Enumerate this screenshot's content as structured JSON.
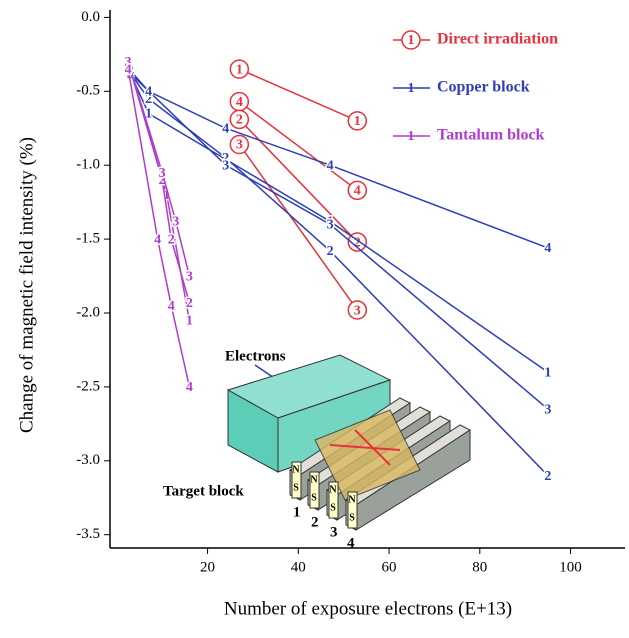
{
  "chart_data": {
    "type": "line",
    "y_label": "Change of magnetic field intensity (%)",
    "x_label": "Number of exposure electrons (E+13)",
    "xlim": [
      -1.5,
      112
    ],
    "ylim": [
      -3.59,
      0.05
    ],
    "xticks": [
      20,
      40,
      60,
      80,
      100
    ],
    "yticks": [
      {
        "value": 0,
        "label": "0.0"
      },
      -0.5,
      {
        "value": -1,
        "label": "-1.0"
      },
      -1.5,
      {
        "value": -2,
        "label": "-2.0"
      },
      -2.5,
      {
        "value": -3,
        "label": "-3.0"
      },
      -3.5
    ],
    "groups": [
      {
        "name": "Direct irradiation",
        "color": "#e8313a",
        "circled": true,
        "series": [
          {
            "marker": "1",
            "x": [
              27,
              53
            ],
            "values": [
              -0.35,
              -0.7
            ]
          },
          {
            "marker": "4",
            "x": [
              27,
              53
            ],
            "values": [
              -0.57,
              -1.17
            ]
          },
          {
            "marker": "2",
            "x": [
              27,
              53
            ],
            "values": [
              -0.69,
              -1.52
            ]
          },
          {
            "marker": "3",
            "x": [
              27,
              53
            ],
            "values": [
              -0.86,
              -1.98
            ]
          }
        ]
      },
      {
        "name": "Copper block",
        "color": "#2c3fb8",
        "circled": false,
        "series": [
          {
            "marker": "1",
            "x": [
              3,
              7,
              47,
              95
            ],
            "values": [
              -0.38,
              -0.65,
              -1.38,
              -2.4
            ]
          },
          {
            "marker": "2",
            "x": [
              3,
              7,
              24,
              47,
              95
            ],
            "values": [
              -0.38,
              -0.55,
              -0.95,
              -1.58,
              -3.1
            ]
          },
          {
            "marker": "3",
            "x": [
              3,
              24,
              47,
              95
            ],
            "values": [
              -0.38,
              -1.0,
              -1.4,
              -2.65
            ]
          },
          {
            "marker": "4",
            "x": [
              3,
              7,
              24,
              47,
              95
            ],
            "values": [
              -0.36,
              -0.5,
              -0.75,
              -1.0,
              -1.56
            ]
          }
        ]
      },
      {
        "name": "Tantalum block",
        "color": "#b03ad0",
        "circled": false,
        "series": [
          {
            "marker": "1",
            "x": [
              2.5,
              11,
              16
            ],
            "values": [
              -0.3,
              -1.2,
              -2.05
            ]
          },
          {
            "marker": "2",
            "x": [
              2.5,
              10,
              12,
              16
            ],
            "values": [
              -0.3,
              -1.1,
              -1.5,
              -1.93
            ]
          },
          {
            "marker": "3",
            "x": [
              2.5,
              10,
              13,
              16
            ],
            "values": [
              -0.3,
              -1.05,
              -1.38,
              -1.75
            ]
          },
          {
            "marker": "4",
            "x": [
              2.5,
              9,
              12,
              16
            ],
            "values": [
              -0.35,
              -1.5,
              -1.95,
              -2.5
            ]
          }
        ]
      }
    ]
  },
  "inset": {
    "beam": "Electrons",
    "target": "Target block",
    "numbers": [
      "1",
      "2",
      "3",
      "4"
    ],
    "north": "N",
    "south": "S"
  }
}
